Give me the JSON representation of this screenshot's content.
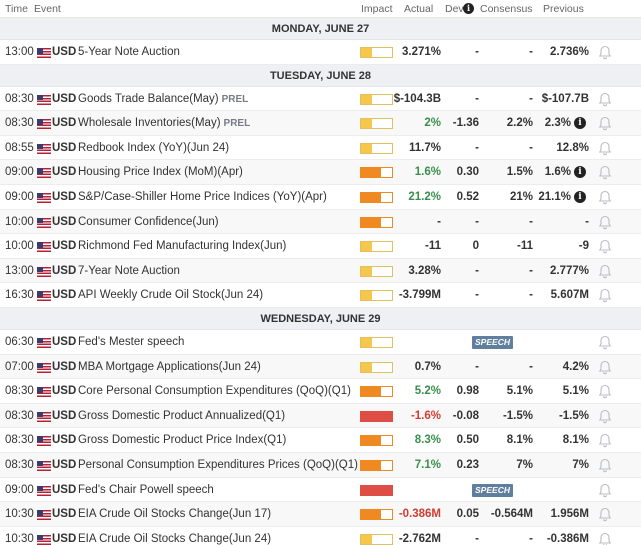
{
  "headers": {
    "time": "Time",
    "event": "Event",
    "impact": "Impact",
    "actual": "Actual",
    "dev": "Dev",
    "consensus": "Consensus",
    "previous": "Previous"
  },
  "colors": {
    "low": "#f5c84c",
    "medium": "#ef8a22",
    "high": "#de4e45",
    "positive": "#3a8f4c",
    "negative": "#d23c32",
    "speech_badge": "#607f9e"
  },
  "sections": [
    {
      "date": "MONDAY, JUNE 27",
      "events": [
        {
          "time": "13:00",
          "currency": "USD",
          "event": "5-Year Note Auction",
          "tag": "",
          "impact": "low",
          "actual": "3.271%",
          "actual_color": "",
          "dev": "-",
          "consensus": "-",
          "previous": "2.736%",
          "info": false,
          "speech": ""
        }
      ]
    },
    {
      "date": "TUESDAY, JUNE 28",
      "events": [
        {
          "time": "08:30",
          "currency": "USD",
          "event": "Goods Trade Balance(May)",
          "tag": "PREL",
          "impact": "low",
          "actual": "$-104.3B",
          "actual_color": "",
          "dev": "-",
          "consensus": "-",
          "previous": "$-107.7B",
          "info": false,
          "speech": ""
        },
        {
          "time": "08:30",
          "currency": "USD",
          "event": "Wholesale Inventories(May)",
          "tag": "PREL",
          "impact": "low",
          "actual": "2%",
          "actual_color": "pos",
          "dev": "-1.36",
          "consensus": "2.2%",
          "previous": "2.3%",
          "info": true,
          "speech": ""
        },
        {
          "time": "08:55",
          "currency": "USD",
          "event": "Redbook Index (YoY)(Jun 24)",
          "tag": "",
          "impact": "low",
          "actual": "11.7%",
          "actual_color": "",
          "dev": "-",
          "consensus": "-",
          "previous": "12.8%",
          "info": false,
          "speech": ""
        },
        {
          "time": "09:00",
          "currency": "USD",
          "event": "Housing Price Index (MoM)(Apr)",
          "tag": "",
          "impact": "med",
          "actual": "1.6%",
          "actual_color": "pos",
          "dev": "0.30",
          "consensus": "1.5%",
          "previous": "1.6%",
          "info": true,
          "speech": ""
        },
        {
          "time": "09:00",
          "currency": "USD",
          "event": "S&P/Case-Shiller Home Price Indices (YoY)(Apr)",
          "tag": "",
          "impact": "med",
          "actual": "21.2%",
          "actual_color": "pos",
          "dev": "0.52",
          "consensus": "21%",
          "previous": "21.1%",
          "info": true,
          "speech": ""
        },
        {
          "time": "10:00",
          "currency": "USD",
          "event": "Consumer Confidence(Jun)",
          "tag": "",
          "impact": "med",
          "actual": "-",
          "actual_color": "",
          "dev": "-",
          "consensus": "-",
          "previous": "-",
          "info": false,
          "speech": ""
        },
        {
          "time": "10:00",
          "currency": "USD",
          "event": "Richmond Fed Manufacturing Index(Jun)",
          "tag": "",
          "impact": "low",
          "actual": "-11",
          "actual_color": "",
          "dev": "0",
          "consensus": "-11",
          "previous": "-9",
          "info": false,
          "speech": ""
        },
        {
          "time": "13:00",
          "currency": "USD",
          "event": "7-Year Note Auction",
          "tag": "",
          "impact": "low",
          "actual": "3.28%",
          "actual_color": "",
          "dev": "-",
          "consensus": "-",
          "previous": "2.777%",
          "info": false,
          "speech": ""
        },
        {
          "time": "16:30",
          "currency": "USD",
          "event": "API Weekly Crude Oil Stock(Jun 24)",
          "tag": "",
          "impact": "low",
          "actual": "-3.799M",
          "actual_color": "",
          "dev": "-",
          "consensus": "-",
          "previous": "5.607M",
          "info": false,
          "speech": ""
        }
      ]
    },
    {
      "date": "WEDNESDAY, JUNE 29",
      "events": [
        {
          "time": "06:30",
          "currency": "USD",
          "event": "Fed's Mester speech",
          "tag": "",
          "impact": "low",
          "actual": "",
          "actual_color": "",
          "dev": "",
          "consensus": "",
          "previous": "",
          "info": false,
          "speech": "SPEECH"
        },
        {
          "time": "07:00",
          "currency": "USD",
          "event": "MBA Mortgage Applications(Jun 24)",
          "tag": "",
          "impact": "low",
          "actual": "0.7%",
          "actual_color": "",
          "dev": "-",
          "consensus": "-",
          "previous": "4.2%",
          "info": false,
          "speech": ""
        },
        {
          "time": "08:30",
          "currency": "USD",
          "event": "Core Personal Consumption Expenditures (QoQ)(Q1)",
          "tag": "",
          "impact": "med",
          "actual": "5.2%",
          "actual_color": "pos",
          "dev": "0.98",
          "consensus": "5.1%",
          "previous": "5.1%",
          "info": false,
          "speech": ""
        },
        {
          "time": "08:30",
          "currency": "USD",
          "event": "Gross Domestic Product Annualized(Q1)",
          "tag": "",
          "impact": "high",
          "actual": "-1.6%",
          "actual_color": "neg",
          "dev": "-0.08",
          "consensus": "-1.5%",
          "previous": "-1.5%",
          "info": false,
          "speech": ""
        },
        {
          "time": "08:30",
          "currency": "USD",
          "event": "Gross Domestic Product Price Index(Q1)",
          "tag": "",
          "impact": "med",
          "actual": "8.3%",
          "actual_color": "pos",
          "dev": "0.50",
          "consensus": "8.1%",
          "previous": "8.1%",
          "info": false,
          "speech": ""
        },
        {
          "time": "08:30",
          "currency": "USD",
          "event": "Personal Consumption Expenditures Prices (QoQ)(Q1)",
          "tag": "",
          "impact": "med",
          "actual": "7.1%",
          "actual_color": "pos",
          "dev": "0.23",
          "consensus": "7%",
          "previous": "7%",
          "info": false,
          "speech": ""
        },
        {
          "time": "09:00",
          "currency": "USD",
          "event": "Fed's Chair Powell speech",
          "tag": "",
          "impact": "high",
          "actual": "",
          "actual_color": "",
          "dev": "",
          "consensus": "",
          "previous": "",
          "info": false,
          "speech": "SPEECH"
        },
        {
          "time": "10:30",
          "currency": "USD",
          "event": "EIA Crude Oil Stocks Change(Jun 17)",
          "tag": "",
          "impact": "med",
          "actual": "-0.386M",
          "actual_color": "neg",
          "dev": "0.05",
          "consensus": "-0.564M",
          "previous": "1.956M",
          "info": false,
          "speech": ""
        },
        {
          "time": "10:30",
          "currency": "USD",
          "event": "EIA Crude Oil Stocks Change(Jun 24)",
          "tag": "",
          "impact": "low",
          "actual": "-2.762M",
          "actual_color": "",
          "dev": "-",
          "consensus": "-",
          "previous": "-0.386M",
          "info": false,
          "speech": ""
        }
      ]
    }
  ]
}
